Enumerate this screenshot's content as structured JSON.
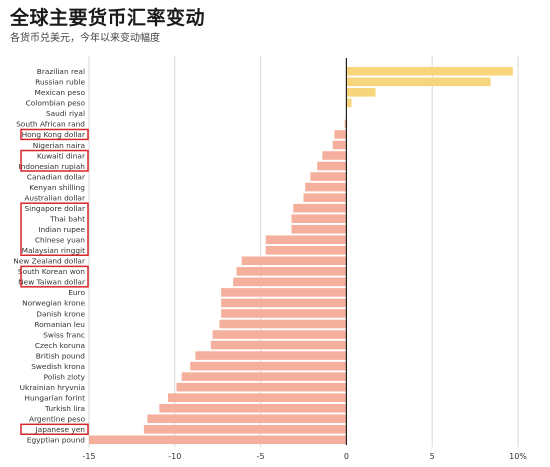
{
  "title": "全球主要货币汇率变动",
  "subtitle": "各货币兑美元，今年以来变动幅度",
  "colors": {
    "positive": "#f7d57a",
    "negative": "#f4b09d",
    "highlight_box": "#d9252b",
    "grid": "#d9d9d9",
    "zero_line": "#222222",
    "label": "#333333"
  },
  "chart_data": {
    "type": "bar",
    "orientation": "horizontal",
    "title": "全球主要货币汇率变动",
    "subtitle": "各货币兑美元，今年以来变动幅度",
    "xlim": [
      -15,
      10
    ],
    "xticks": [
      -15,
      -10,
      -5,
      0,
      5,
      10
    ],
    "xtick_labels": [
      "-15",
      "-10",
      "-5",
      "0",
      "5",
      "10%"
    ],
    "grid": true,
    "categories": [
      "Brazilian real",
      "Russian ruble",
      "Mexican peso",
      "Colombian peso",
      "Saudi riyal",
      "South African rand",
      "Hong Kong dollar",
      "Nigerian naira",
      "Kuwaiti dinar",
      "Indonesian rupiah",
      "Canadian dollar",
      "Kenyan shilling",
      "Australian dollar",
      "Singapore dollar",
      "Thai baht",
      "Indian rupee",
      "Chinese yuan",
      "Malaysian ringgit",
      "New Zealand dollar",
      "South Korean won",
      "New Taiwan dollar",
      "Euro",
      "Norwegian krone",
      "Danish krone",
      "Romanian leu",
      "Swiss franc",
      "Czech koruna",
      "British pound",
      "Swedish krona",
      "Polish zloty",
      "Ukrainian hryvnia",
      "Hungarian forint",
      "Turkish lira",
      "Argentine peso",
      "Japanese yen",
      "Egyptian pound"
    ],
    "values": [
      9.7,
      8.4,
      1.7,
      0.3,
      0.0,
      -0.1,
      -0.7,
      -0.8,
      -1.4,
      -1.7,
      -2.1,
      -2.4,
      -2.5,
      -3.1,
      -3.2,
      -3.2,
      -4.7,
      -4.7,
      -6.1,
      -6.4,
      -6.6,
      -7.3,
      -7.3,
      -7.3,
      -7.4,
      -7.8,
      -7.9,
      -8.8,
      -9.1,
      -9.6,
      -9.9,
      -10.4,
      -10.9,
      -11.6,
      -11.8,
      -15.0
    ],
    "highlight_groups": [
      [
        "Hong Kong dollar"
      ],
      [
        "Kuwaiti dinar",
        "Indonesian rupiah"
      ],
      [
        "Singapore dollar",
        "Thai baht",
        "Indian rupee",
        "Chinese yuan",
        "Malaysian ringgit"
      ],
      [
        "South Korean won",
        "New Taiwan dollar"
      ],
      [
        "Japanese yen"
      ]
    ]
  }
}
